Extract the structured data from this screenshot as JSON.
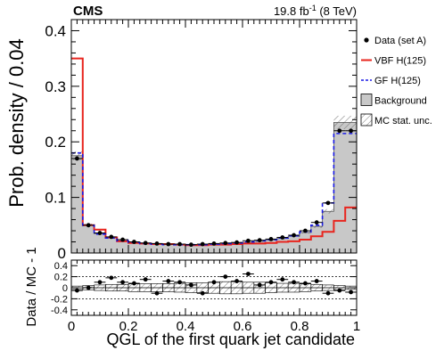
{
  "header": {
    "experiment": "CMS",
    "lumi_value": "19.8 fb",
    "lumi_exp": "-1",
    "lumi_energy": " (8 TeV)"
  },
  "legend": {
    "placement": "top-right",
    "entries": [
      {
        "key": "data",
        "label": "Data (set A)"
      },
      {
        "key": "vbf",
        "label": "VBF H(125)"
      },
      {
        "key": "gf",
        "label": "GF H(125)"
      },
      {
        "key": "bkg",
        "label": "Background"
      },
      {
        "key": "mcstat",
        "label": "MC stat. unc."
      }
    ]
  },
  "colors": {
    "vbf": "#e8251e",
    "gf": "#1a1ae6",
    "background_fill": "#c8c8c8",
    "background_line": "#555555",
    "data": "#000000"
  },
  "chart_data": [
    {
      "type": "bar",
      "panel": "main",
      "xlabel": "QGL of the first quark jet candidate",
      "ylabel": "Prob. density / 0.04",
      "xlim": [
        0,
        1
      ],
      "ylim": [
        0,
        0.42
      ],
      "x_ticks": [
        "0",
        "0.2",
        "0.4",
        "0.6",
        "0.8",
        "1"
      ],
      "y_ticks": [
        "0",
        "0.1",
        "0.2",
        "0.3",
        "0.4"
      ],
      "bin_edges": [
        0,
        0.04,
        0.08,
        0.12,
        0.16,
        0.2,
        0.24,
        0.28,
        0.32,
        0.36,
        0.4,
        0.44,
        0.48,
        0.52,
        0.56,
        0.6,
        0.64,
        0.68,
        0.72,
        0.76,
        0.8,
        0.84,
        0.88,
        0.92,
        0.96,
        1.0
      ],
      "series": [
        {
          "name": "Background",
          "key": "bkg",
          "style": "filled-step",
          "values": [
            0.175,
            0.05,
            0.035,
            0.027,
            0.022,
            0.019,
            0.017,
            0.016,
            0.015,
            0.015,
            0.015,
            0.015,
            0.016,
            0.017,
            0.018,
            0.019,
            0.021,
            0.023,
            0.026,
            0.03,
            0.037,
            0.048,
            0.075,
            0.235,
            0.235
          ]
        },
        {
          "name": "VBF H(125)",
          "key": "vbf",
          "style": "step",
          "values": [
            0.35,
            0.05,
            0.042,
            0.028,
            0.021,
            0.018,
            0.017,
            0.016,
            0.016,
            0.015,
            0.014,
            0.014,
            0.015,
            0.015,
            0.016,
            0.017,
            0.017,
            0.018,
            0.02,
            0.021,
            0.024,
            0.03,
            0.038,
            0.058,
            0.082
          ]
        },
        {
          "name": "GF H(125)",
          "key": "gf",
          "style": "dashed-step",
          "values": [
            0.18,
            0.05,
            0.034,
            0.027,
            0.022,
            0.019,
            0.017,
            0.016,
            0.015,
            0.015,
            0.015,
            0.015,
            0.016,
            0.017,
            0.018,
            0.02,
            0.022,
            0.024,
            0.027,
            0.031,
            0.038,
            0.05,
            0.09,
            0.215,
            0.215
          ]
        },
        {
          "name": "Data (set A)",
          "key": "data",
          "style": "points",
          "values": [
            0.17,
            0.05,
            0.036,
            0.029,
            0.024,
            0.02,
            0.018,
            0.017,
            0.016,
            0.016,
            0.015,
            0.016,
            0.017,
            0.018,
            0.019,
            0.022,
            0.023,
            0.025,
            0.028,
            0.032,
            0.04,
            0.055,
            0.09,
            0.22,
            0.22
          ]
        }
      ],
      "mc_stat_unc": [
        0.008,
        0.003,
        0.002,
        0.0015,
        0.001,
        0.001,
        0.001,
        0.001,
        0.001,
        0.001,
        0.001,
        0.001,
        0.001,
        0.001,
        0.001,
        0.001,
        0.001,
        0.001,
        0.001,
        0.0015,
        0.002,
        0.003,
        0.004,
        0.012,
        0.012
      ]
    },
    {
      "type": "scatter",
      "panel": "ratio",
      "xlabel": "",
      "ylabel": "Data / MC - 1",
      "xlim": [
        0,
        1
      ],
      "ylim": [
        -0.5,
        0.5
      ],
      "y_ticks": [
        "0.4",
        "0.2",
        "0",
        "-0.2",
        "-0.4"
      ],
      "grid_lines": [
        0.2,
        0,
        -0.2
      ],
      "x": [
        0.02,
        0.06,
        0.1,
        0.14,
        0.18,
        0.22,
        0.26,
        0.3,
        0.34,
        0.38,
        0.42,
        0.46,
        0.5,
        0.54,
        0.58,
        0.62,
        0.66,
        0.7,
        0.74,
        0.78,
        0.82,
        0.86,
        0.9,
        0.94,
        0.98
      ],
      "values": [
        -0.05,
        0.0,
        0.1,
        0.18,
        0.1,
        0.08,
        0.15,
        -0.1,
        0.12,
        0.1,
        0.05,
        -0.1,
        0.1,
        0.2,
        0.12,
        0.25,
        0.05,
        0.1,
        0.15,
        0.1,
        0.08,
        0.12,
        -0.1,
        -0.05,
        -0.08
      ],
      "mc_unc_band": [
        0.06,
        0.08,
        0.1,
        0.12,
        0.12,
        0.14,
        0.14,
        0.15,
        0.15,
        0.16,
        0.18,
        0.18,
        0.2,
        0.22,
        0.22,
        0.2,
        0.2,
        0.18,
        0.16,
        0.16,
        0.14,
        0.12,
        0.1,
        0.08,
        0.06
      ]
    }
  ]
}
